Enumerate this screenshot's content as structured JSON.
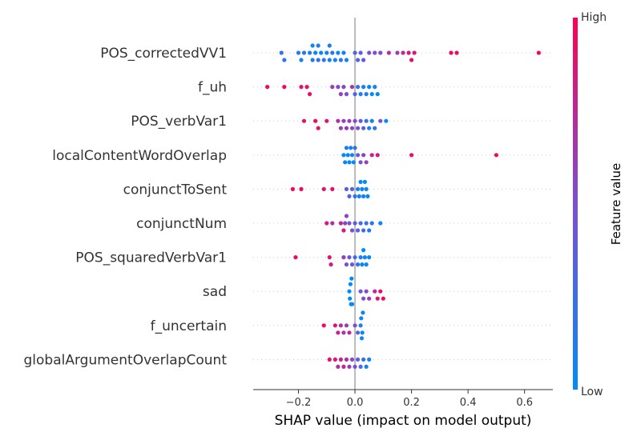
{
  "chart_data": {
    "type": "scatter",
    "subtype": "shap-beeswarm",
    "xlabel": "SHAP value (impact on model output)",
    "xlim": [
      -0.36,
      0.7
    ],
    "xticks": [
      -0.2,
      0.0,
      0.2,
      0.4,
      0.6
    ],
    "xtick_labels": [
      "−0.2",
      "0.0",
      "0.2",
      "0.4",
      "0.6"
    ],
    "colorbar": {
      "label": "Feature value",
      "high_label": "High",
      "low_label": "Low",
      "low_color": "#008bfb",
      "high_color": "#ff0052"
    },
    "features": [
      {
        "name": "POS_correctedVV1",
        "points": [
          [
            -0.26,
            0.2
          ],
          [
            -0.25,
            0.2
          ],
          [
            -0.2,
            0.1
          ],
          [
            -0.19,
            0.1
          ],
          [
            -0.18,
            0.2
          ],
          [
            -0.16,
            0.1
          ],
          [
            -0.15,
            0.15
          ],
          [
            -0.15,
            0.05
          ],
          [
            -0.14,
            0.0
          ],
          [
            -0.13,
            0.2
          ],
          [
            -0.13,
            0.1
          ],
          [
            -0.12,
            0.0
          ],
          [
            -0.11,
            0.2
          ],
          [
            -0.1,
            0.1
          ],
          [
            -0.09,
            0.0
          ],
          [
            -0.09,
            0.15
          ],
          [
            -0.08,
            0.2
          ],
          [
            -0.07,
            0.1
          ],
          [
            -0.06,
            0.05
          ],
          [
            -0.05,
            0.2
          ],
          [
            -0.04,
            0.1
          ],
          [
            -0.03,
            0.05
          ],
          [
            0.0,
            0.3
          ],
          [
            0.01,
            0.3
          ],
          [
            0.02,
            0.4
          ],
          [
            0.03,
            0.45
          ],
          [
            0.05,
            0.5
          ],
          [
            0.07,
            0.5
          ],
          [
            0.09,
            0.55
          ],
          [
            0.12,
            0.7
          ],
          [
            0.15,
            0.65
          ],
          [
            0.17,
            0.75
          ],
          [
            0.19,
            0.85
          ],
          [
            0.2,
            0.9
          ],
          [
            0.21,
            0.85
          ],
          [
            0.34,
            0.95
          ],
          [
            0.36,
            0.95
          ],
          [
            0.65,
            1.0
          ]
        ]
      },
      {
        "name": "f_uh",
        "points": [
          [
            -0.31,
            0.95
          ],
          [
            -0.25,
            0.95
          ],
          [
            -0.19,
            0.9
          ],
          [
            -0.17,
            0.9
          ],
          [
            -0.16,
            0.9
          ],
          [
            -0.08,
            0.6
          ],
          [
            -0.06,
            0.55
          ],
          [
            -0.05,
            0.6
          ],
          [
            -0.04,
            0.55
          ],
          [
            -0.03,
            0.5
          ],
          [
            -0.01,
            0.7
          ],
          [
            0.0,
            0.3
          ],
          [
            0.01,
            0.2
          ],
          [
            0.02,
            0.1
          ],
          [
            0.03,
            0.05
          ],
          [
            0.04,
            0.1
          ],
          [
            0.05,
            0.0
          ],
          [
            0.06,
            0.05
          ],
          [
            0.07,
            0.1
          ],
          [
            0.08,
            0.0
          ]
        ]
      },
      {
        "name": "POS_verbVar1",
        "points": [
          [
            -0.18,
            0.9
          ],
          [
            -0.14,
            0.95
          ],
          [
            -0.13,
            0.9
          ],
          [
            -0.1,
            0.85
          ],
          [
            -0.06,
            0.7
          ],
          [
            -0.05,
            0.6
          ],
          [
            -0.04,
            0.6
          ],
          [
            -0.03,
            0.65
          ],
          [
            -0.02,
            0.6
          ],
          [
            -0.01,
            0.55
          ],
          [
            0.0,
            0.55
          ],
          [
            0.01,
            0.5
          ],
          [
            0.02,
            0.4
          ],
          [
            0.03,
            0.35
          ],
          [
            0.04,
            0.2
          ],
          [
            0.05,
            0.1
          ],
          [
            0.06,
            0.05
          ],
          [
            0.07,
            0.2
          ],
          [
            0.09,
            0.45
          ],
          [
            0.11,
            0.05
          ]
        ]
      },
      {
        "name": "localContentWordOverlap",
        "points": [
          [
            -0.04,
            0.0
          ],
          [
            -0.035,
            0.05
          ],
          [
            -0.03,
            0.1
          ],
          [
            -0.025,
            0.05
          ],
          [
            -0.02,
            0.0
          ],
          [
            -0.015,
            0.1
          ],
          [
            -0.01,
            0.05
          ],
          [
            -0.005,
            0.0
          ],
          [
            0.0,
            0.2
          ],
          [
            0.01,
            0.4
          ],
          [
            0.02,
            0.5
          ],
          [
            0.03,
            0.55
          ],
          [
            0.04,
            0.6
          ],
          [
            0.06,
            0.8
          ],
          [
            0.08,
            0.85
          ],
          [
            0.2,
            0.9
          ],
          [
            0.5,
            0.95
          ]
        ]
      },
      {
        "name": "conjunctToSent",
        "points": [
          [
            -0.22,
            0.95
          ],
          [
            -0.19,
            0.95
          ],
          [
            -0.11,
            0.85
          ],
          [
            -0.08,
            0.9
          ],
          [
            -0.03,
            0.4
          ],
          [
            -0.02,
            0.3
          ],
          [
            -0.01,
            0.35
          ],
          [
            0.0,
            0.2
          ],
          [
            0.01,
            0.1
          ],
          [
            0.015,
            0.05
          ],
          [
            0.02,
            0.0
          ],
          [
            0.025,
            0.05
          ],
          [
            0.03,
            0.1
          ],
          [
            0.035,
            0.0
          ],
          [
            0.04,
            0.05
          ],
          [
            0.045,
            0.0
          ]
        ]
      },
      {
        "name": "conjunctNum",
        "points": [
          [
            -0.1,
            0.85
          ],
          [
            -0.08,
            0.7
          ],
          [
            -0.05,
            0.75
          ],
          [
            -0.04,
            0.85
          ],
          [
            -0.035,
            0.6
          ],
          [
            -0.03,
            0.55
          ],
          [
            -0.02,
            0.45
          ],
          [
            -0.01,
            0.5
          ],
          [
            0.0,
            0.4
          ],
          [
            0.01,
            0.35
          ],
          [
            0.02,
            0.3
          ],
          [
            0.03,
            0.25
          ],
          [
            0.04,
            0.2
          ],
          [
            0.05,
            0.15
          ],
          [
            0.06,
            0.2
          ],
          [
            0.09,
            0.05
          ]
        ]
      },
      {
        "name": "POS_squaredVerbVar1",
        "points": [
          [
            -0.21,
            0.95
          ],
          [
            -0.09,
            0.85
          ],
          [
            -0.085,
            0.8
          ],
          [
            -0.04,
            0.6
          ],
          [
            -0.03,
            0.5
          ],
          [
            -0.02,
            0.45
          ],
          [
            -0.01,
            0.4
          ],
          [
            0.0,
            0.3
          ],
          [
            0.01,
            0.2
          ],
          [
            0.02,
            0.1
          ],
          [
            0.025,
            0.05
          ],
          [
            0.03,
            0.0
          ],
          [
            0.035,
            0.05
          ],
          [
            0.04,
            0.0
          ],
          [
            0.05,
            0.05
          ]
        ]
      },
      {
        "name": "sad",
        "points": [
          [
            -0.02,
            0.0
          ],
          [
            -0.018,
            0.0
          ],
          [
            -0.016,
            0.0
          ],
          [
            -0.014,
            0.0
          ],
          [
            -0.012,
            0.0
          ],
          [
            -0.01,
            0.0
          ],
          [
            0.02,
            0.45
          ],
          [
            0.03,
            0.5
          ],
          [
            0.04,
            0.55
          ],
          [
            0.05,
            0.6
          ],
          [
            0.07,
            0.75
          ],
          [
            0.08,
            0.85
          ],
          [
            0.09,
            0.9
          ],
          [
            0.1,
            0.95
          ]
        ]
      },
      {
        "name": "f_uncertain",
        "points": [
          [
            -0.11,
            0.95
          ],
          [
            -0.07,
            0.85
          ],
          [
            -0.06,
            0.8
          ],
          [
            -0.05,
            0.7
          ],
          [
            -0.04,
            0.65
          ],
          [
            -0.03,
            0.6
          ],
          [
            -0.02,
            0.75
          ],
          [
            0.0,
            0.55
          ],
          [
            0.01,
            0.4
          ],
          [
            0.02,
            0.1
          ],
          [
            0.022,
            0.05
          ],
          [
            0.024,
            0.0
          ],
          [
            0.026,
            0.0
          ],
          [
            0.028,
            0.05
          ]
        ]
      },
      {
        "name": "globalArgumentOverlapCount",
        "points": [
          [
            -0.09,
            0.9
          ],
          [
            -0.07,
            0.85
          ],
          [
            -0.06,
            0.7
          ],
          [
            -0.05,
            0.8
          ],
          [
            -0.04,
            0.75
          ],
          [
            -0.03,
            0.7
          ],
          [
            -0.02,
            0.6
          ],
          [
            -0.01,
            0.55
          ],
          [
            0.0,
            0.5
          ],
          [
            0.01,
            0.4
          ],
          [
            0.02,
            0.3
          ],
          [
            0.03,
            0.2
          ],
          [
            0.04,
            0.1
          ],
          [
            0.05,
            0.05
          ]
        ]
      }
    ]
  }
}
